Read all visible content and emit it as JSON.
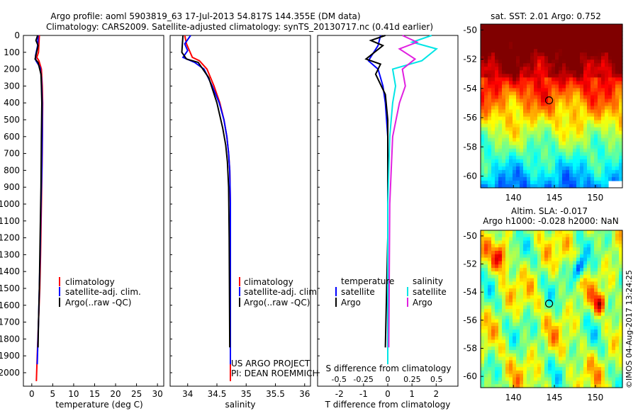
{
  "header": {
    "line1": "Argo profile: aoml 5903819_63 17-Jul-2013 54.817S 144.355E (DM data)",
    "line2": "Climatology: CARS2009. Satellite-adjusted climatology: synTS_20130717.nc (0.41d earlier)"
  },
  "colors": {
    "climatology": "#ff0000",
    "satellite": "#0000ff",
    "argo": "#000000",
    "sal_satellite": "#00e5e5",
    "sal_argo": "#e020e0"
  },
  "chart_data": [
    {
      "type": "line",
      "id": "temperature",
      "xlabel": "temperature (deg C)",
      "ylabel": "",
      "xlim": [
        -2,
        31.5
      ],
      "ylim": [
        2080,
        0
      ],
      "xticks": [
        "0",
        "5",
        "10",
        "15",
        "20",
        "25",
        "30"
      ],
      "yticks": [
        "0",
        "100",
        "200",
        "300",
        "400",
        "500",
        "600",
        "700",
        "800",
        "900",
        "1000",
        "1100",
        "1200",
        "1300",
        "1400",
        "1500",
        "1600",
        "1700",
        "1800",
        "1900",
        "2000"
      ],
      "legend": [
        "climatology",
        "satellite-adj. clim.",
        "Argo(..raw -QC)"
      ],
      "series": [
        {
          "name": "climatology",
          "color": "#ff0000",
          "x": [
            1.8,
            1.7,
            1.6,
            1.2,
            1.7,
            2.3,
            2.5,
            2.6,
            2.5,
            2.3,
            2.1,
            1.9,
            1.6,
            1.3,
            1.1
          ],
          "y": [
            0,
            50,
            100,
            130,
            150,
            200,
            300,
            400,
            700,
            1000,
            1300,
            1500,
            1700,
            1900,
            2050
          ]
        },
        {
          "name": "satellite-adj. clim.",
          "color": "#0000ff",
          "x": [
            1.5,
            1.4,
            0.9,
            1.0,
            2.0,
            2.3,
            2.5,
            2.5,
            2.4,
            2.2,
            2.0,
            1.8,
            1.6,
            1.3
          ],
          "y": [
            0,
            60,
            120,
            150,
            190,
            250,
            400,
            600,
            800,
            1000,
            1300,
            1500,
            1700,
            1950
          ]
        },
        {
          "name": "Argo(..raw -QC)",
          "color": "#000000",
          "x": [
            1.4,
            1.0,
            1.5,
            0.8,
            1.5,
            2.2,
            2.3,
            2.4,
            2.3,
            2.2,
            2.0,
            1.8,
            1.6,
            1.5
          ],
          "y": [
            0,
            30,
            60,
            140,
            160,
            230,
            300,
            400,
            600,
            900,
            1200,
            1500,
            1700,
            1850
          ]
        }
      ]
    },
    {
      "type": "line",
      "id": "salinity",
      "xlabel": "salinity",
      "ylabel": "",
      "xlim": [
        33.7,
        36.1
      ],
      "ylim": [
        2080,
        0
      ],
      "xticks": [
        "34",
        "34.5",
        "35",
        "35.5",
        "36"
      ],
      "legend": [
        "climatology",
        "satellite-adj. clim.",
        "Argo(..raw -QC)"
      ],
      "series": [
        {
          "name": "climatology",
          "color": "#ff0000",
          "x": [
            33.95,
            33.98,
            34.08,
            34.2,
            34.33,
            34.45,
            34.55,
            34.62,
            34.67,
            34.7,
            34.72,
            34.73,
            34.73,
            34.73
          ],
          "y": [
            0,
            50,
            130,
            150,
            200,
            300,
            400,
            500,
            600,
            700,
            800,
            1000,
            1500,
            2050
          ]
        },
        {
          "name": "satellite-adj. clim.",
          "color": "#0000ff",
          "x": [
            34.05,
            33.95,
            34.0,
            33.92,
            34.12,
            34.28,
            34.42,
            34.54,
            34.62,
            34.67,
            34.7,
            34.72,
            34.73,
            34.73
          ],
          "y": [
            0,
            50,
            90,
            130,
            160,
            200,
            300,
            400,
            500,
            600,
            700,
            800,
            1000,
            1950
          ]
        },
        {
          "name": "Argo(..raw -QC)",
          "color": "#000000",
          "x": [
            33.92,
            33.9,
            33.98,
            34.18,
            34.36,
            34.5,
            34.6,
            34.65,
            34.68,
            34.7,
            34.71,
            34.72
          ],
          "y": [
            0,
            100,
            140,
            160,
            250,
            400,
            550,
            650,
            750,
            900,
            1200,
            1850
          ]
        }
      ]
    },
    {
      "type": "line",
      "id": "differences",
      "xlabel": "T difference from climatology",
      "ylabel": "",
      "xlim": [
        -2.9,
        2.9
      ],
      "ylim": [
        2080,
        0
      ],
      "xticks": [
        "-2",
        "-1",
        "0",
        "1",
        "2"
      ],
      "top_xlabel": "S difference from climatology",
      "top_xticks": [
        "-0.5",
        "-0.25",
        "0",
        "0.25",
        "0.5"
      ],
      "legend_titles": [
        "temperature",
        "salinity"
      ],
      "legend": [
        "satellite",
        "Argo",
        "satellite",
        "Argo"
      ],
      "series": [
        {
          "name": "T satellite",
          "color": "#0000ff",
          "x": [
            -0.3,
            -0.4,
            -0.8,
            -0.4,
            -0.2,
            -0.1,
            0.0,
            0.0,
            0.0,
            0.0,
            0.0
          ],
          "y": [
            0,
            60,
            150,
            200,
            300,
            400,
            600,
            800,
            1000,
            1400,
            1850
          ]
        },
        {
          "name": "T Argo",
          "color": "#000000",
          "x": [
            -0.1,
            -0.7,
            -0.2,
            -0.9,
            -0.3,
            -0.5,
            -0.1,
            0.0,
            0.0,
            0.0,
            -0.1
          ],
          "y": [
            0,
            30,
            60,
            140,
            170,
            230,
            350,
            500,
            800,
            1200,
            1850
          ]
        },
        {
          "name": "S satellite",
          "color": "#00e5e5",
          "x": [
            0.45,
            0.25,
            0.5,
            0.35,
            0.05,
            0.08,
            0.05,
            0.02,
            0.0,
            0.0,
            0.0
          ],
          "y": [
            0,
            40,
            80,
            150,
            200,
            300,
            400,
            600,
            1000,
            1500,
            1950
          ]
        },
        {
          "name": "S Argo",
          "color": "#e020e0",
          "x": [
            0.15,
            0.3,
            0.12,
            0.28,
            0.15,
            0.18,
            0.12,
            0.05,
            0.02,
            0.01
          ],
          "y": [
            0,
            40,
            80,
            140,
            200,
            300,
            400,
            600,
            1000,
            1850
          ]
        }
      ]
    },
    {
      "type": "heatmap",
      "id": "sst_map",
      "title": "sat. SST: 2.01 Argo: 0.752",
      "xlim": [
        136,
        153.3
      ],
      "ylim": [
        -60.8,
        -49.6
      ],
      "xticks": [
        "140",
        "145",
        "150"
      ],
      "yticks": [
        "-50",
        "-52",
        "-54",
        "-56",
        "-58",
        "-60"
      ],
      "argo_position": [
        144.355,
        -54.817
      ]
    },
    {
      "type": "heatmap",
      "id": "sla_map",
      "title": "Altim. SLA: -0.017",
      "subtitle": "Argo h1000: -0.028 h2000: NaN",
      "xlim": [
        136,
        153.3
      ],
      "ylim": [
        -60.8,
        -49.6
      ],
      "xticks": [
        "140",
        "145",
        "150"
      ],
      "yticks": [
        "-50",
        "-52",
        "-54",
        "-56",
        "-58",
        "-60"
      ],
      "argo_position": [
        144.355,
        -54.817
      ]
    }
  ],
  "footer": {
    "project_line1": "US ARGO PROJECT",
    "project_line2": "PI: DEAN ROEMMICH",
    "credit": "©IMOS 04-Aug-2017 13:24:25"
  }
}
